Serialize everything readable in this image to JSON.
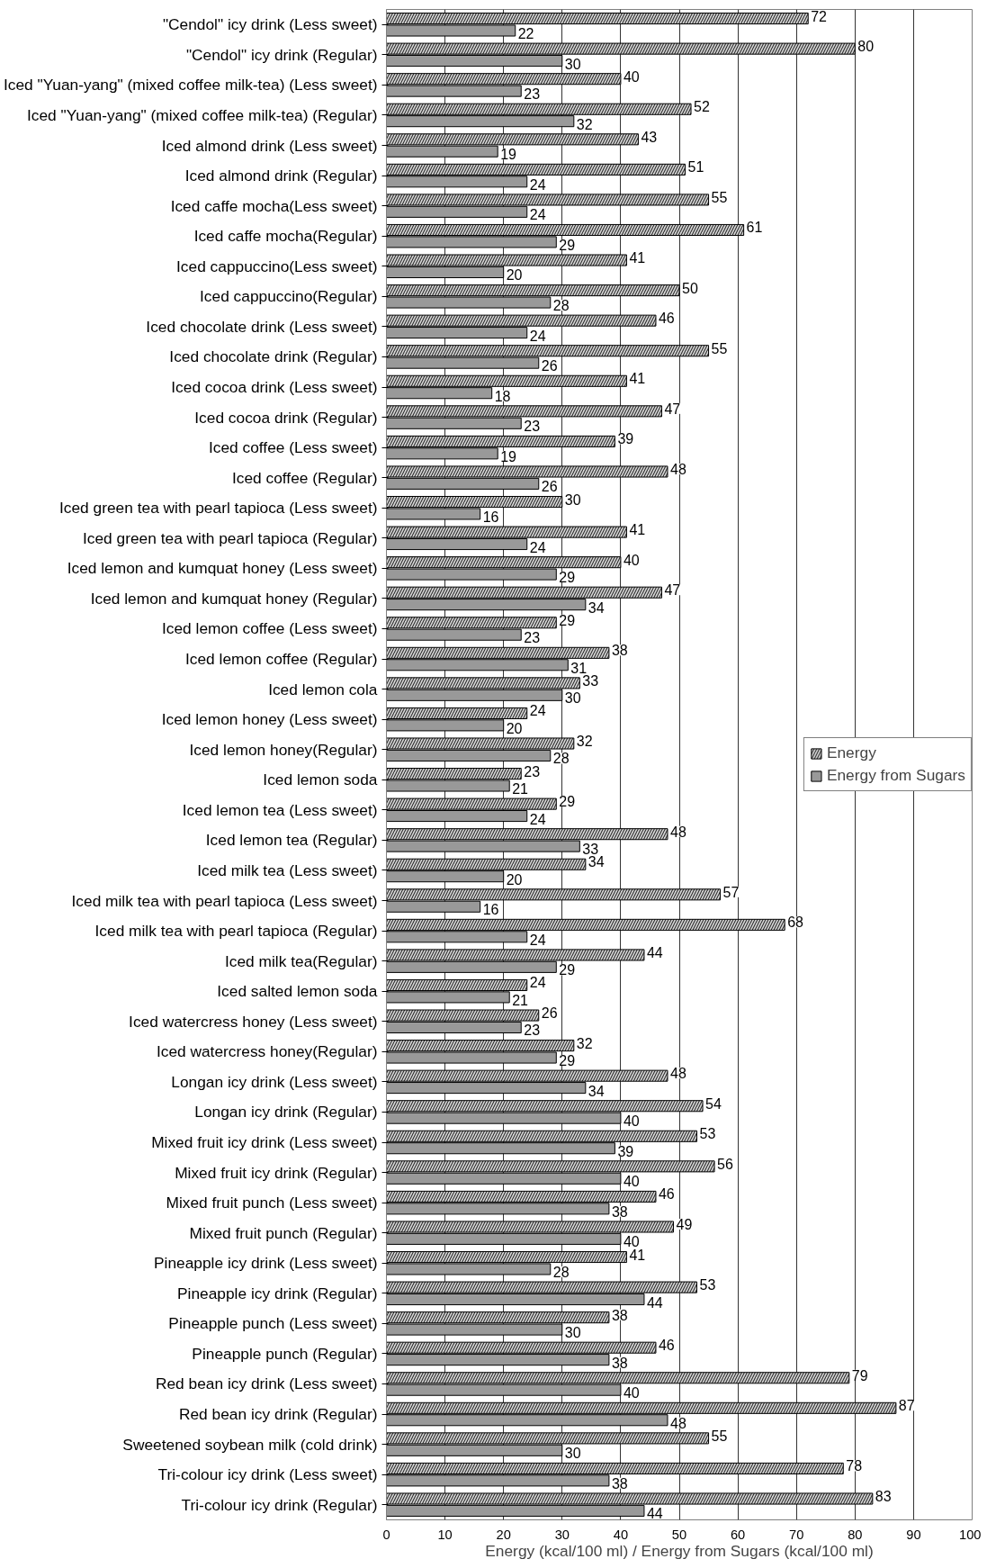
{
  "chart_data": {
    "type": "bar",
    "orientation": "horizontal",
    "xlabel": "Energy (kcal/100 ml) / Energy from Sugars (kcal/100 ml)",
    "categories": [
      "\"Cendol\" icy drink (Less sweet)",
      "\"Cendol\" icy drink (Regular)",
      "Iced \"Yuan-yang\" (mixed coffee milk-tea) (Less sweet)",
      "Iced \"Yuan-yang\" (mixed coffee milk-tea) (Regular)",
      "Iced almond drink (Less sweet)",
      "Iced almond drink (Regular)",
      "Iced caffe mocha(Less sweet)",
      "Iced caffe mocha(Regular)",
      "Iced cappuccino(Less sweet)",
      "Iced cappuccino(Regular)",
      "Iced chocolate drink (Less sweet)",
      "Iced chocolate drink (Regular)",
      "Iced cocoa drink (Less sweet)",
      "Iced cocoa drink (Regular)",
      "Iced coffee (Less sweet)",
      "Iced coffee (Regular)",
      "Iced green tea with pearl tapioca (Less sweet)",
      "Iced green tea with pearl tapioca (Regular)",
      "Iced lemon and kumquat honey (Less sweet)",
      "Iced lemon and kumquat honey (Regular)",
      "Iced lemon coffee (Less sweet)",
      "Iced lemon coffee (Regular)",
      "Iced lemon cola",
      "Iced lemon honey (Less sweet)",
      "Iced lemon honey(Regular)",
      "Iced lemon soda",
      "Iced lemon tea (Less sweet)",
      "Iced lemon tea (Regular)",
      "Iced milk tea (Less sweet)",
      "Iced milk tea with pearl tapioca (Less sweet)",
      "Iced milk tea with pearl tapioca (Regular)",
      "Iced milk tea(Regular)",
      "Iced salted lemon soda",
      "Iced watercress honey (Less sweet)",
      "Iced watercress honey(Regular)",
      "Longan icy drink (Less sweet)",
      "Longan icy drink (Regular)",
      "Mixed fruit icy drink (Less sweet)",
      "Mixed fruit icy drink (Regular)",
      "Mixed fruit punch (Less sweet)",
      "Mixed fruit punch (Regular)",
      "Pineapple icy drink (Less sweet)",
      "Pineapple icy drink (Regular)",
      "Pineapple punch (Less sweet)",
      "Pineapple punch (Regular)",
      "Red bean icy drink (Less sweet)",
      "Red bean icy drink (Regular)",
      "Sweetened soybean milk (cold drink)",
      "Tri-colour icy drink (Less sweet)",
      "Tri-colour icy drink (Regular)"
    ],
    "series": [
      {
        "name": "Energy",
        "color": "#d9d9d9",
        "values": [
          72,
          80,
          40,
          52,
          43,
          51,
          55,
          61,
          41,
          50,
          46,
          55,
          41,
          47,
          39,
          48,
          30,
          41,
          40,
          47,
          29,
          38,
          33,
          24,
          32,
          23,
          29,
          48,
          34,
          57,
          68,
          44,
          24,
          26,
          32,
          48,
          54,
          53,
          56,
          46,
          49,
          41,
          53,
          38,
          46,
          79,
          87,
          55,
          78,
          83
        ]
      },
      {
        "name": "Energy from Sugars",
        "color": "#999999",
        "values": [
          22,
          30,
          23,
          32,
          19,
          24,
          24,
          29,
          20,
          28,
          24,
          26,
          18,
          23,
          19,
          26,
          16,
          24,
          29,
          34,
          23,
          31,
          30,
          20,
          28,
          21,
          24,
          33,
          20,
          16,
          24,
          29,
          21,
          23,
          29,
          34,
          40,
          39,
          40,
          38,
          40,
          28,
          44,
          30,
          38,
          40,
          48,
          30,
          38,
          44
        ]
      }
    ],
    "xlim": [
      0,
      100
    ],
    "xticks": [
      0,
      10,
      20,
      30,
      40,
      50,
      60,
      70,
      80,
      90,
      100
    ],
    "grid": "x",
    "legend": "right",
    "data_labels": true
  }
}
